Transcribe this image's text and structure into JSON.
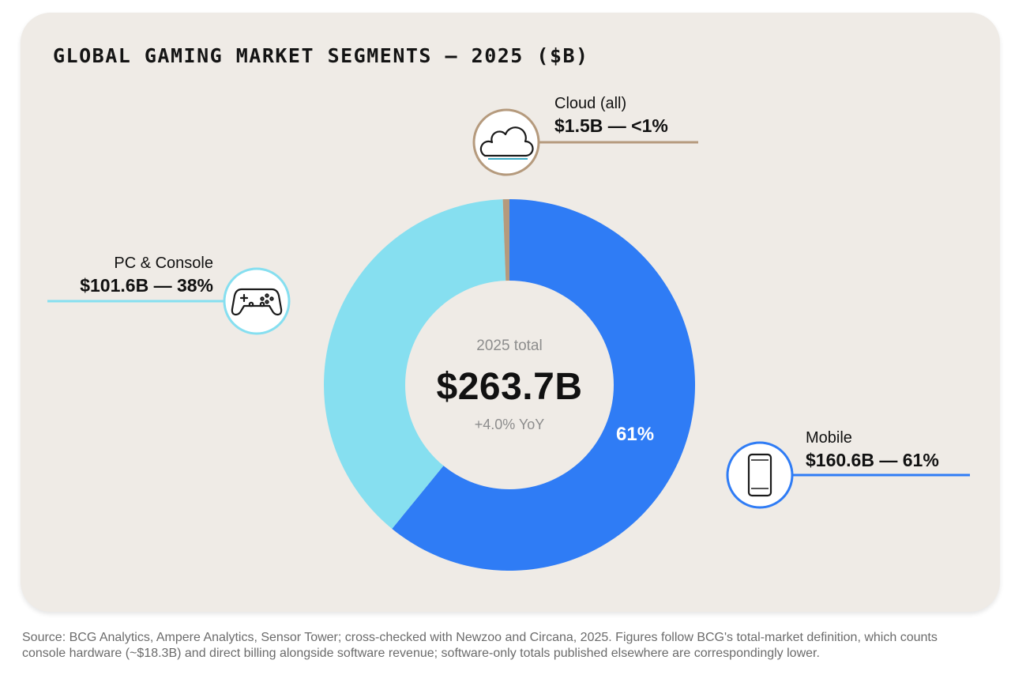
{
  "chart_data": {
    "type": "pie",
    "variant": "donut",
    "title": "GLOBAL GAMING MARKET SEGMENTS — 2025 ($B)",
    "center": {
      "top_text": "2025 total",
      "total_text": "$263.7B",
      "change_text": "+4.0% YoY"
    },
    "slices": [
      {
        "name": "Mobile",
        "value": 160.6,
        "label": "$160.6B — 61%",
        "color": "#2f7cf5",
        "icon": "phone-icon",
        "inner_label": "61%"
      },
      {
        "name": "PC & Console",
        "value": 101.6,
        "label": "$101.6B — 38%",
        "color": "#86dff0",
        "icon": "gamepad-icon"
      },
      {
        "name": "Cloud (all)",
        "value": 1.5,
        "label": "$1.5B — <1%",
        "color": "#b59a7d",
        "icon": "cloud-icon"
      }
    ],
    "legend": "none"
  },
  "source_note": "Source: BCG Analytics, Ampere Analytics, Sensor Tower; cross-checked with Newzoo and Circana, 2025. Figures follow BCG's total-market definition, which counts console hardware (~$18.3B) and direct billing alongside software revenue; software-only totals published elsewhere are correspondingly lower.",
  "colors": {
    "card_background": "#efebe6",
    "donut_hole": "#efebe6",
    "mobile": "#2f7cf5",
    "pc_console": "#86dff0",
    "cloud": "#b59a7d"
  }
}
